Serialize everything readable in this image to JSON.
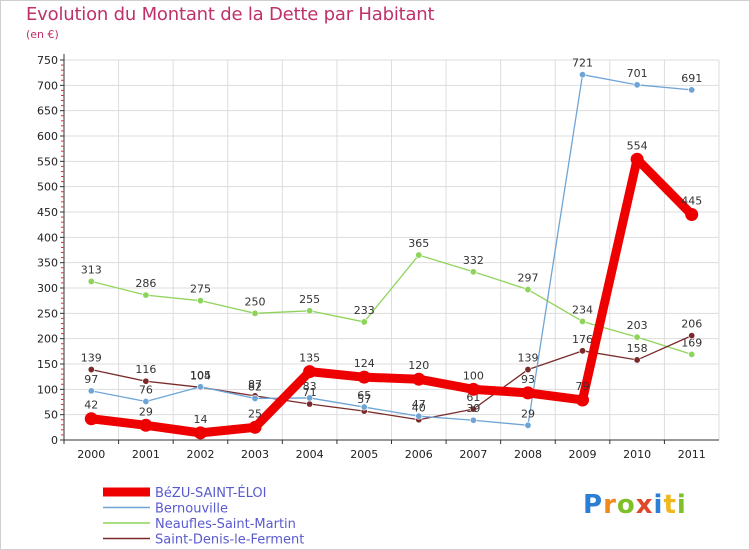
{
  "title": "Evolution du Montant de la Dette par Habitant",
  "subtitle": "(en €)",
  "logo": {
    "text": "Proxiti",
    "colors": [
      "#2a7fd4",
      "#f08a1c",
      "#7fbf2a",
      "#e0462a",
      "#2a7fd4",
      "#f0b81c",
      "#7fbf2a"
    ]
  },
  "chart_data": {
    "type": "line",
    "x": [
      "2000",
      "2001",
      "2002",
      "2003",
      "2004",
      "2005",
      "2006",
      "2007",
      "2008",
      "2009",
      "2010",
      "2011"
    ],
    "ylim": [
      0,
      750
    ],
    "yticks": [
      0,
      50,
      100,
      150,
      200,
      250,
      300,
      350,
      400,
      450,
      500,
      550,
      600,
      650,
      700,
      750
    ],
    "grid": true,
    "legend_position": "bottom-left",
    "series": [
      {
        "name": "Neaufles-Saint-Martin",
        "color": "#8fd45a",
        "values": [
          313,
          286,
          275,
          250,
          255,
          233,
          365,
          332,
          297,
          234,
          203,
          169
        ]
      },
      {
        "name": "Saint-Denis-le-Ferment",
        "color": "#7a2a2a",
        "values": [
          139,
          116,
          104,
          87,
          71,
          57,
          40,
          61,
          139,
          176,
          158,
          206
        ]
      },
      {
        "name": "Bernouville",
        "color": "#6fa5d6",
        "values": [
          97,
          76,
          105,
          82,
          83,
          65,
          47,
          39,
          29,
          721,
          701,
          691
        ]
      },
      {
        "name": "BéZU-SAINT-ÉLOI",
        "color": "#ee0000",
        "values": [
          42,
          29,
          14,
          25,
          135,
          124,
          120,
          100,
          93,
          79,
          554,
          445
        ]
      }
    ],
    "legend_order": [
      "BéZU-SAINT-ÉLOI",
      "Bernouville",
      "Neaufles-Saint-Martin",
      "Saint-Denis-le-Ferment"
    ]
  }
}
